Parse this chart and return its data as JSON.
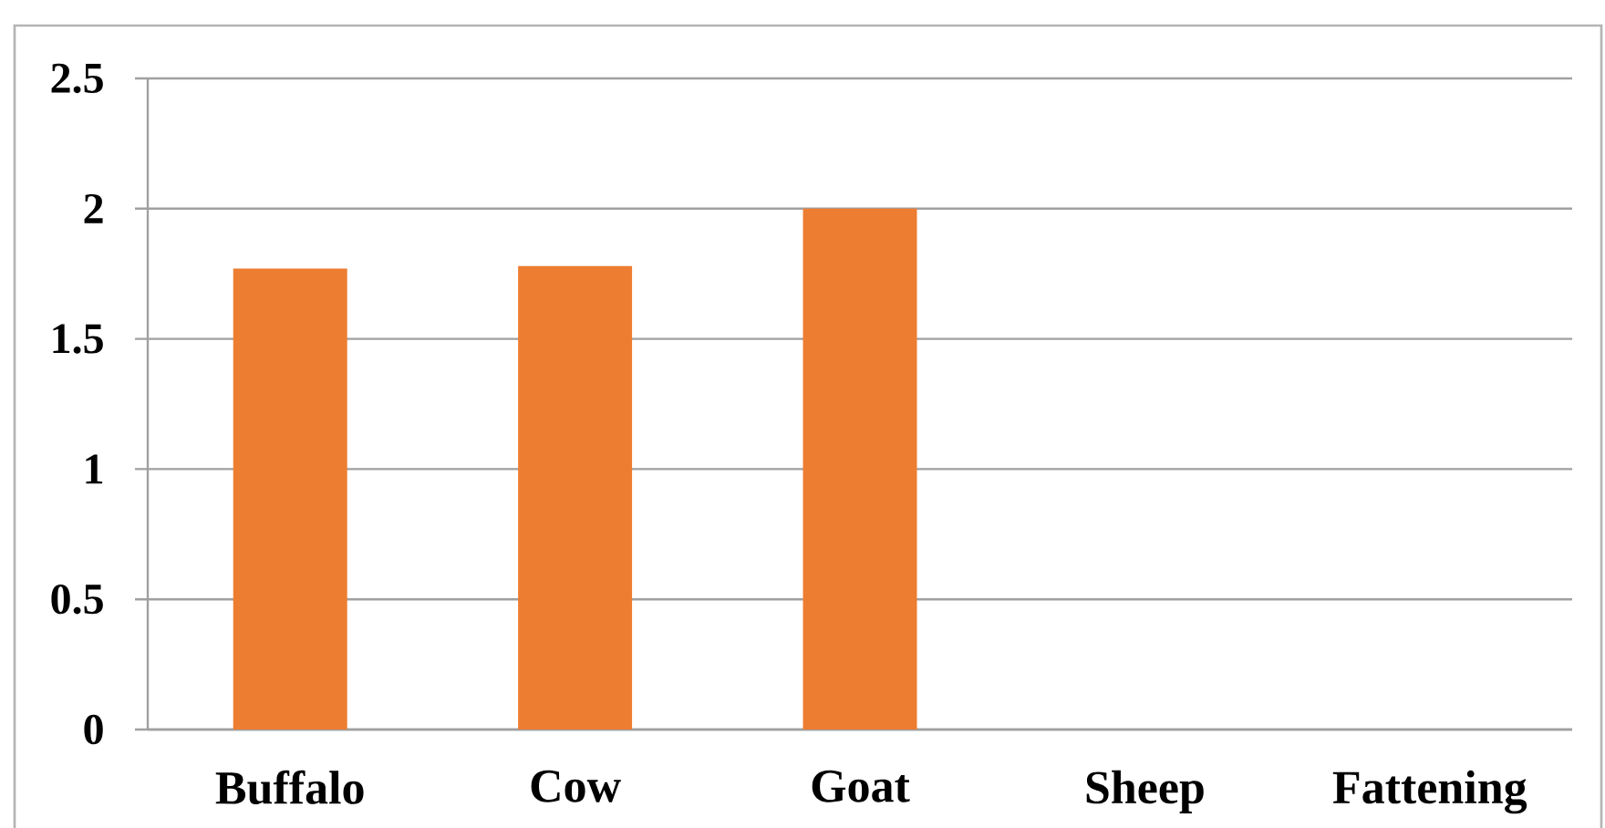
{
  "chart_data": {
    "type": "bar",
    "categories": [
      "Buffalo",
      "Cow",
      "Goat",
      "Sheep",
      "Fattening"
    ],
    "values": [
      1.77,
      1.78,
      2.0,
      null,
      null
    ],
    "color": "#ed7d31",
    "ylim": [
      0,
      2.5
    ],
    "yticks": [
      0,
      0.5,
      1,
      1.5,
      2,
      2.5
    ],
    "grid": "y"
  }
}
